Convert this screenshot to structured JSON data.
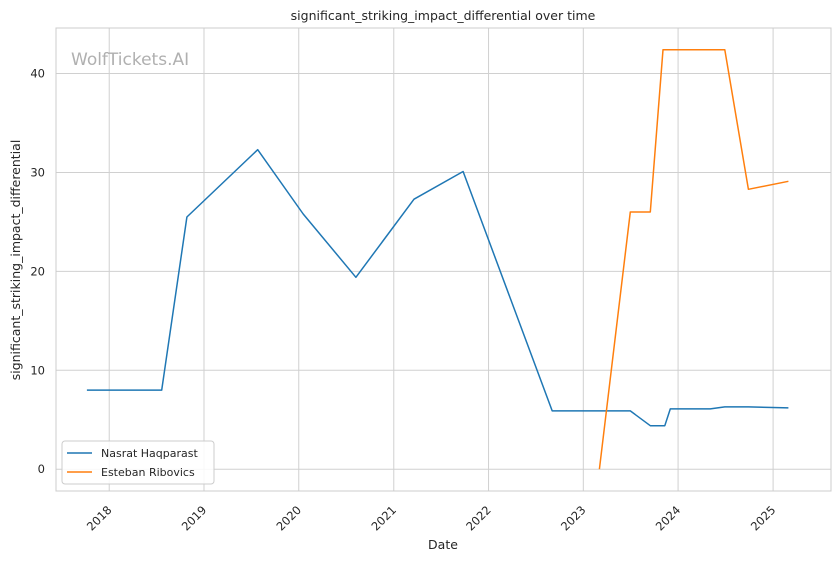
{
  "chart_data": {
    "type": "line",
    "title": "significant_striking_impact_differential over time",
    "xlabel": "Date",
    "ylabel": "significant_striking_impact_differential",
    "watermark": "WolfTickets.AI",
    "xlim": [
      "2017-06-10",
      "2025-08-12"
    ],
    "ylim": [
      -2.2,
      44.6
    ],
    "x_ticks": [
      {
        "date": "2018-01-01",
        "label": "2018"
      },
      {
        "date": "2019-01-01",
        "label": "2019"
      },
      {
        "date": "2020-01-01",
        "label": "2020"
      },
      {
        "date": "2021-01-01",
        "label": "2021"
      },
      {
        "date": "2022-01-01",
        "label": "2022"
      },
      {
        "date": "2023-01-01",
        "label": "2023"
      },
      {
        "date": "2024-01-01",
        "label": "2024"
      },
      {
        "date": "2025-01-01",
        "label": "2025"
      }
    ],
    "y_ticks": [
      {
        "value": 0,
        "label": "0"
      },
      {
        "value": 10,
        "label": "10"
      },
      {
        "value": 20,
        "label": "20"
      },
      {
        "value": 30,
        "label": "30"
      },
      {
        "value": 40,
        "label": "40"
      }
    ],
    "grid": true,
    "legend_position": "lower-left",
    "series": [
      {
        "name": "Nasrat Haqparast",
        "color": "#1f77b4",
        "points": [
          {
            "x": "2017-10-07",
            "y": 8.0
          },
          {
            "x": "2018-07-22",
            "y": 8.0
          },
          {
            "x": "2018-10-27",
            "y": 25.5
          },
          {
            "x": "2019-07-27",
            "y": 32.3
          },
          {
            "x": "2020-01-18",
            "y": 25.8
          },
          {
            "x": "2020-08-08",
            "y": 19.4
          },
          {
            "x": "2021-03-20",
            "y": 27.3
          },
          {
            "x": "2021-09-25",
            "y": 30.1
          },
          {
            "x": "2022-09-03",
            "y": 5.9
          },
          {
            "x": "2023-07-01",
            "y": 5.9
          },
          {
            "x": "2023-09-16",
            "y": 4.4
          },
          {
            "x": "2023-11-11",
            "y": 4.4
          },
          {
            "x": "2023-12-02",
            "y": 6.1
          },
          {
            "x": "2024-05-04",
            "y": 6.1
          },
          {
            "x": "2024-06-29",
            "y": 6.3
          },
          {
            "x": "2024-09-28",
            "y": 6.3
          },
          {
            "x": "2025-03-01",
            "y": 6.2
          }
        ]
      },
      {
        "name": "Esteban Ribovics",
        "color": "#ff7f0e",
        "points": [
          {
            "x": "2023-03-04",
            "y": 0.0
          },
          {
            "x": "2023-07-01",
            "y": 26.0
          },
          {
            "x": "2023-09-16",
            "y": 26.0
          },
          {
            "x": "2023-11-04",
            "y": 42.4
          },
          {
            "x": "2024-06-29",
            "y": 42.4
          },
          {
            "x": "2024-09-28",
            "y": 28.3
          },
          {
            "x": "2025-03-01",
            "y": 29.1
          }
        ]
      }
    ]
  }
}
